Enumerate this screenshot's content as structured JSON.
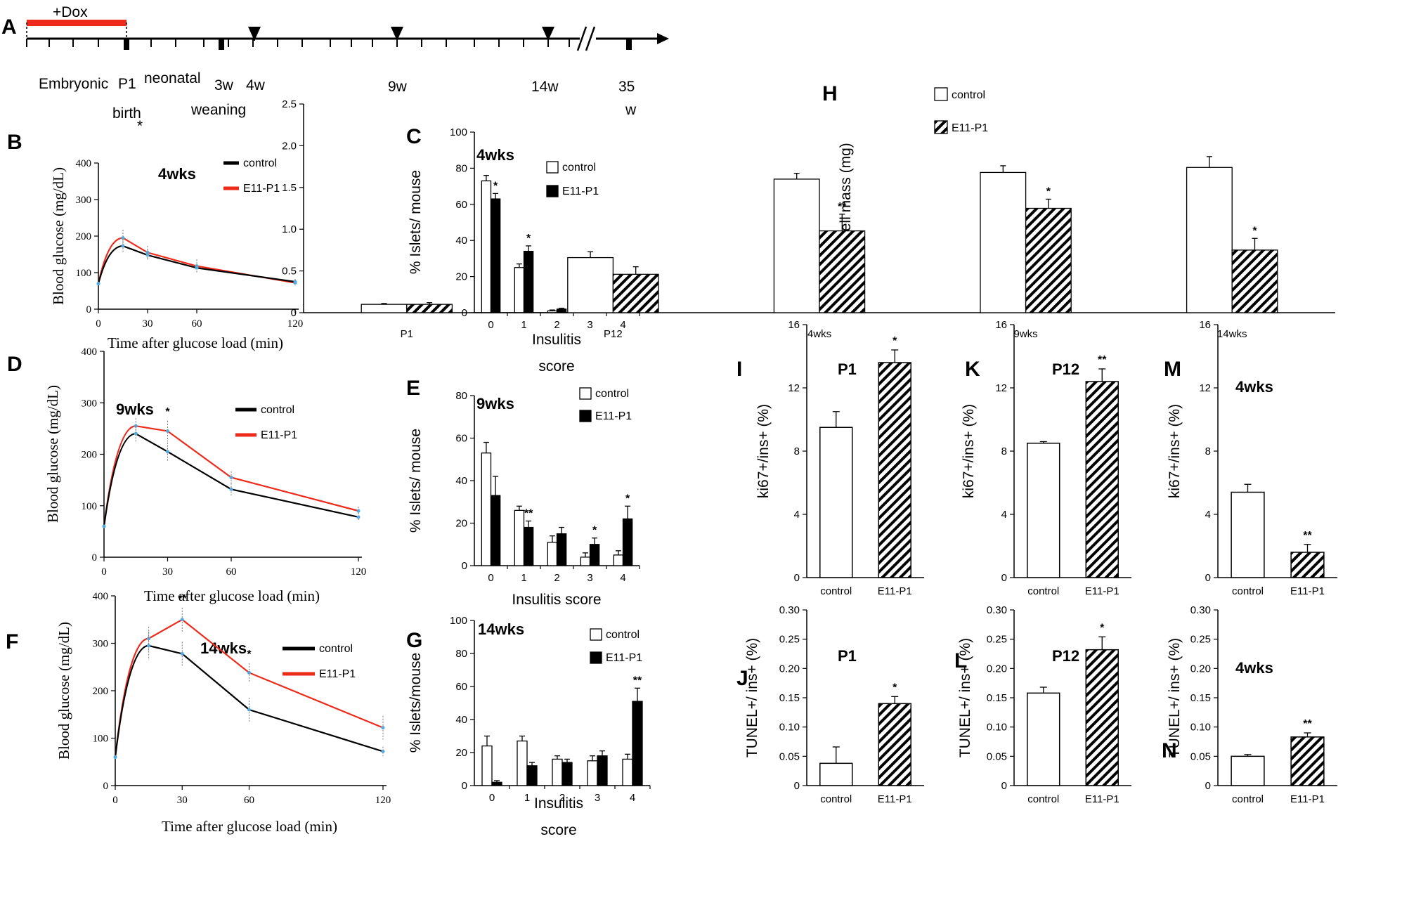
{
  "colors": {
    "control": "#000000",
    "treated": "#ee2a1b",
    "dox": "#ee2a1b",
    "marker": "#55aadd"
  },
  "timeline": {
    "label": "A",
    "dox_label": "+Dox",
    "marks": [
      {
        "key": "embryonic",
        "text": "Embryonic"
      },
      {
        "key": "p1",
        "text": "P1"
      },
      {
        "key": "neonatal",
        "text": "neonatal"
      },
      {
        "key": "birth",
        "text": "birth"
      },
      {
        "key": "birth_star",
        "text": "*"
      },
      {
        "key": "w3",
        "text": "3w"
      },
      {
        "key": "weaning",
        "text": "weaning"
      },
      {
        "key": "w4",
        "text": "4w"
      },
      {
        "key": "w9",
        "text": "9w"
      },
      {
        "key": "w14",
        "text": "14w"
      },
      {
        "key": "w35a",
        "text": "35"
      },
      {
        "key": "w35b",
        "text": "w"
      }
    ],
    "arrows_at": [
      "4w",
      "9w",
      "14w"
    ]
  },
  "chart_data": [
    {
      "id": "B",
      "type": "line",
      "panel": "B",
      "title": "4wks",
      "xlabel": "Time after glucose load (min)",
      "ylabel": "Blood glucose (mg/dL)",
      "xlim": [
        0,
        120
      ],
      "ylim": [
        0,
        400
      ],
      "xticks": [
        0,
        30,
        60,
        120
      ],
      "yticks": [
        0,
        100,
        200,
        300,
        400
      ],
      "legend": [
        "control",
        "E11-P1"
      ],
      "series": [
        {
          "name": "control",
          "x": [
            0,
            15,
            30,
            60,
            120
          ],
          "values": [
            70,
            173,
            148,
            113,
            75
          ],
          "err": [
            0,
            18,
            15,
            15,
            8
          ]
        },
        {
          "name": "E11-P1",
          "x": [
            0,
            15,
            30,
            60,
            120
          ],
          "values": [
            70,
            195,
            155,
            118,
            72
          ],
          "err": [
            0,
            22,
            18,
            18,
            8
          ]
        }
      ],
      "annotations": []
    },
    {
      "id": "C",
      "type": "bar",
      "panel": "C",
      "title": "4wks",
      "xlabel": "Insulitis score",
      "ylabel": "% Islets/ mouse",
      "ylim": [
        0,
        100
      ],
      "yticks": [
        0,
        20,
        40,
        60,
        80,
        100
      ],
      "categories": [
        "0",
        "1",
        "2",
        "3",
        "4"
      ],
      "legend": [
        "control",
        "E11-P1"
      ],
      "series": [
        {
          "name": "control",
          "fill": "white",
          "values": [
            73,
            25,
            1,
            0,
            0
          ],
          "err": [
            3,
            2,
            0.5,
            0,
            0
          ]
        },
        {
          "name": "E11-P1",
          "fill": "black",
          "values": [
            63,
            34,
            2,
            0,
            0
          ],
          "err": [
            3,
            3,
            0.5,
            0,
            0
          ]
        }
      ],
      "annotations": [
        {
          "text": "*",
          "category": 0
        },
        {
          "text": "*",
          "category": 1
        }
      ]
    },
    {
      "id": "D",
      "type": "line",
      "panel": "D",
      "title": "9wks",
      "xlabel": "Time after glucose load (min)",
      "ylabel": "Blood glucose (mg/dL)",
      "xlim": [
        0,
        120
      ],
      "ylim": [
        0,
        400
      ],
      "xticks": [
        0,
        30,
        60,
        120
      ],
      "yticks": [
        0,
        100,
        200,
        300,
        400
      ],
      "legend": [
        "control",
        "E11-P1"
      ],
      "series": [
        {
          "name": "control",
          "x": [
            0,
            15,
            30,
            60,
            120
          ],
          "values": [
            60,
            240,
            205,
            132,
            78
          ],
          "err": [
            0,
            15,
            18,
            12,
            8
          ]
        },
        {
          "name": "E11-P1",
          "x": [
            0,
            15,
            30,
            60,
            120
          ],
          "values": [
            60,
            255,
            245,
            155,
            90
          ],
          "err": [
            0,
            15,
            20,
            12,
            8
          ]
        }
      ],
      "annotations": [
        {
          "text": "*",
          "x": 30
        }
      ]
    },
    {
      "id": "E",
      "type": "bar",
      "panel": "E",
      "title": "9wks",
      "xlabel": "Insulitis score",
      "ylabel": "% Islets/ mouse",
      "ylim": [
        0,
        80
      ],
      "yticks": [
        0,
        20,
        40,
        60,
        80
      ],
      "categories": [
        "0",
        "1",
        "2",
        "3",
        "4"
      ],
      "legend": [
        "control",
        "E11-P1"
      ],
      "series": [
        {
          "name": "control",
          "fill": "white",
          "values": [
            53,
            26,
            11,
            4,
            5
          ],
          "err": [
            5,
            2,
            3,
            2,
            2
          ]
        },
        {
          "name": "E11-P1",
          "fill": "black",
          "values": [
            33,
            18,
            15,
            10,
            22
          ],
          "err": [
            9,
            3,
            3,
            3,
            6
          ]
        }
      ],
      "annotations": [
        {
          "text": "**",
          "category": 1
        },
        {
          "text": "*",
          "category": 3
        },
        {
          "text": "*",
          "category": 4
        }
      ]
    },
    {
      "id": "F",
      "type": "line",
      "panel": "F",
      "title": "14wks",
      "xlabel": "Time after glucose load (min)",
      "ylabel": "Blood glucose (mg/dL)",
      "xlim": [
        0,
        120
      ],
      "ylim": [
        0,
        400
      ],
      "xticks": [
        0,
        30,
        60,
        120
      ],
      "yticks": [
        0,
        100,
        200,
        300,
        400
      ],
      "legend": [
        "control",
        "E11-P1"
      ],
      "series": [
        {
          "name": "control",
          "x": [
            0,
            15,
            30,
            60,
            120
          ],
          "values": [
            60,
            295,
            278,
            160,
            72
          ],
          "err": [
            0,
            30,
            25,
            25,
            10
          ]
        },
        {
          "name": "E11-P1",
          "x": [
            0,
            15,
            30,
            60,
            120
          ],
          "values": [
            60,
            310,
            350,
            238,
            122
          ],
          "err": [
            0,
            25,
            25,
            20,
            25
          ]
        }
      ],
      "annotations": [
        {
          "text": "**",
          "x": 30
        },
        {
          "text": "*",
          "x": 60
        }
      ]
    },
    {
      "id": "G",
      "type": "bar",
      "panel": "G",
      "title": "14wks",
      "xlabel": "Insulitis score",
      "ylabel": "% Islets/mouse",
      "ylim": [
        0,
        100
      ],
      "yticks": [
        0,
        20,
        40,
        60,
        80,
        100
      ],
      "categories": [
        "0",
        "1",
        "2",
        "3",
        "4"
      ],
      "legend": [
        "control",
        "E11-P1"
      ],
      "series": [
        {
          "name": "control",
          "fill": "white",
          "values": [
            24,
            27,
            16,
            15,
            16
          ],
          "err": [
            6,
            3,
            2,
            3,
            3
          ]
        },
        {
          "name": "E11-P1",
          "fill": "black",
          "values": [
            2,
            12,
            14,
            18,
            51
          ],
          "err": [
            1,
            2,
            2,
            3,
            8
          ]
        }
      ],
      "annotations": [
        {
          "text": "**",
          "category": 4
        }
      ]
    },
    {
      "id": "H",
      "type": "bar",
      "panel": "H",
      "title": "",
      "xlabel": "",
      "ylabel": "Beta cell mass (mg)",
      "ylim": [
        0,
        2.5
      ],
      "yticks": [
        0,
        0.5,
        1.0,
        1.5,
        2.0,
        2.5
      ],
      "ytick_labels": [
        "0",
        "0.5",
        "1.0",
        "1.5",
        "2.0",
        "2.5"
      ],
      "categories": [
        "P1",
        "P12",
        "4wks",
        "9wks",
        "14wks"
      ],
      "legend": [
        "control",
        "E11-P1"
      ],
      "series": [
        {
          "name": "control",
          "fill": "white",
          "values": [
            0.1,
            0.66,
            1.6,
            1.68,
            1.74
          ],
          "err": [
            0.01,
            0.07,
            0.07,
            0.08,
            0.13
          ]
        },
        {
          "name": "E11-P1",
          "fill": "hatch",
          "values": [
            0.1,
            0.46,
            0.98,
            1.25,
            0.75
          ],
          "err": [
            0.02,
            0.09,
            0.2,
            0.11,
            0.14
          ]
        }
      ],
      "annotations": [
        {
          "text": "**",
          "category": 2
        },
        {
          "text": "*",
          "category": 3
        },
        {
          "text": "*",
          "category": 4
        }
      ]
    },
    {
      "id": "I",
      "type": "bar",
      "panel": "I",
      "title": "P1",
      "ylabel": "ki67+/ins+ (%)",
      "ylim": [
        0,
        16
      ],
      "yticks": [
        0,
        4,
        8,
        12,
        16
      ],
      "categories": [
        "control",
        "E11-P1"
      ],
      "fills": [
        "white",
        "hatch"
      ],
      "values": [
        9.5,
        13.6
      ],
      "err": [
        1.0,
        0.8
      ],
      "annotations": [
        {
          "text": "*",
          "category": 1
        }
      ]
    },
    {
      "id": "K",
      "type": "bar",
      "panel": "K",
      "title": "P12",
      "ylabel": "ki67+/ins+ (%)",
      "ylim": [
        0,
        16
      ],
      "yticks": [
        0,
        4,
        8,
        12,
        16
      ],
      "categories": [
        "control",
        "E11-P1"
      ],
      "fills": [
        "white",
        "hatch"
      ],
      "values": [
        8.5,
        12.4
      ],
      "err": [
        0.1,
        0.8
      ],
      "annotations": [
        {
          "text": "**",
          "category": 1
        }
      ]
    },
    {
      "id": "M",
      "type": "bar",
      "panel": "M",
      "title": "4wks",
      "ylabel": "ki67+/ins+ (%)",
      "ylim": [
        0,
        16
      ],
      "yticks": [
        0,
        4,
        8,
        12,
        16
      ],
      "categories": [
        "control",
        "E11-P1"
      ],
      "fills": [
        "white",
        "hatch"
      ],
      "values": [
        5.4,
        1.6
      ],
      "err": [
        0.5,
        0.5
      ],
      "annotations": [
        {
          "text": "**",
          "category": 1
        }
      ]
    },
    {
      "id": "J",
      "type": "bar",
      "panel": "J",
      "title": "P1",
      "ylabel": "TUNEL+/ ins+ (%)",
      "ylim": [
        0,
        0.3
      ],
      "yticks": [
        0,
        0.05,
        0.1,
        0.15,
        0.2,
        0.25,
        0.3
      ],
      "ytick_labels": [
        "0",
        "0.05",
        "0.10",
        "0.15",
        "0.20",
        "0.25",
        "0.30"
      ],
      "categories": [
        "control",
        "E11-P1"
      ],
      "fills": [
        "white",
        "hatch"
      ],
      "values": [
        0.038,
        0.14
      ],
      "err": [
        0.028,
        0.012
      ],
      "annotations": [
        {
          "text": "*",
          "category": 1
        }
      ]
    },
    {
      "id": "L",
      "type": "bar",
      "panel": "L",
      "title": "P12",
      "ylabel": "TUNEL+/ ins+ (%)",
      "ylim": [
        0,
        0.3
      ],
      "yticks": [
        0,
        0.05,
        0.1,
        0.15,
        0.2,
        0.25,
        0.3
      ],
      "ytick_labels": [
        "0",
        "0.05",
        "0.10",
        "0.15",
        "0.20",
        "0.25",
        "0.30"
      ],
      "categories": [
        "control",
        "E11-P1"
      ],
      "fills": [
        "white",
        "hatch"
      ],
      "values": [
        0.158,
        0.232
      ],
      "err": [
        0.01,
        0.022
      ],
      "annotations": [
        {
          "text": "*",
          "category": 1
        }
      ]
    },
    {
      "id": "N",
      "type": "bar",
      "panel": "N",
      "title": "4wks",
      "ylabel": "TUNEL+/ ins+ (%)",
      "ylim": [
        0,
        0.3
      ],
      "yticks": [
        0,
        0.05,
        0.1,
        0.15,
        0.2,
        0.25,
        0.3
      ],
      "ytick_labels": [
        "0",
        "0.05",
        "0.10",
        "0.15",
        "0.20",
        "0.25",
        "0.30"
      ],
      "categories": [
        "control",
        "E11-P1"
      ],
      "fills": [
        "white",
        "hatch"
      ],
      "values": [
        0.05,
        0.083
      ],
      "err": [
        0.003,
        0.007
      ],
      "annotations": [
        {
          "text": "**",
          "category": 1
        }
      ]
    }
  ]
}
